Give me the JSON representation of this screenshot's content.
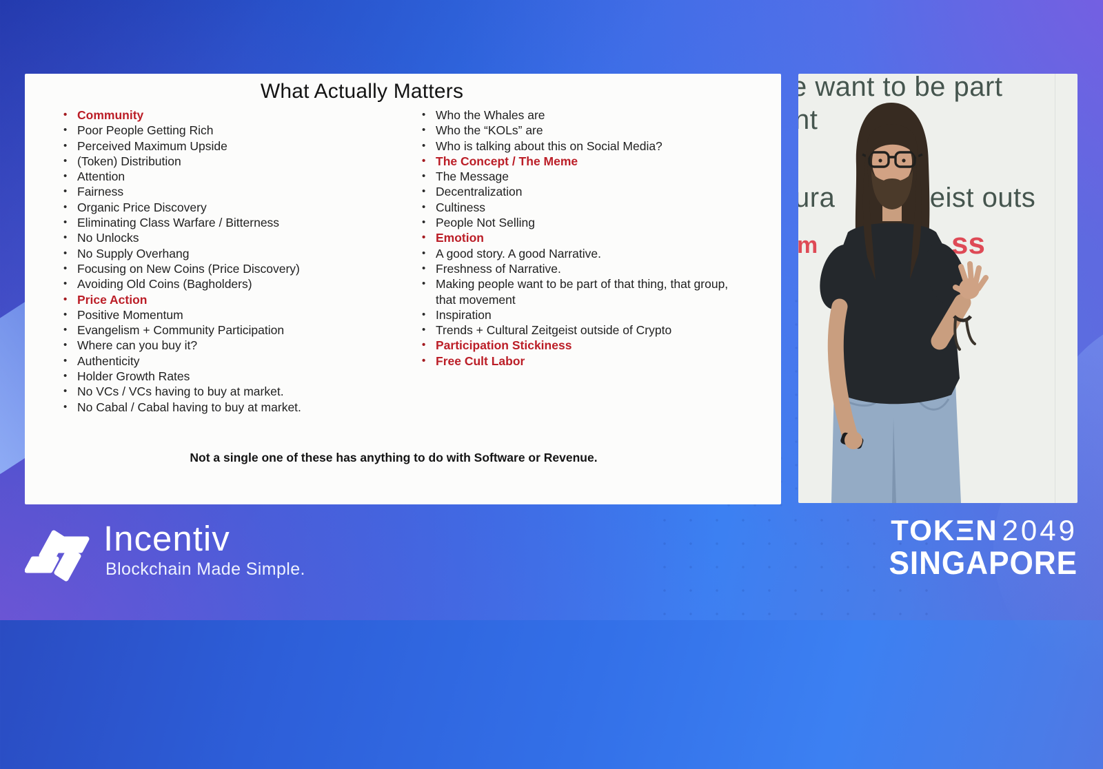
{
  "slide": {
    "title": "What Actually Matters",
    "note": "Not a single one of these has anything to do with Software or Revenue.",
    "left_items": [
      {
        "text": "Community",
        "em": true
      },
      {
        "text": "Poor People Getting Rich"
      },
      {
        "text": "Perceived Maximum Upside"
      },
      {
        "text": "(Token) Distribution"
      },
      {
        "text": "Attention"
      },
      {
        "text": "Fairness"
      },
      {
        "text": "Organic Price Discovery"
      },
      {
        "text": "Eliminating Class Warfare / Bitterness"
      },
      {
        "text": "No Unlocks"
      },
      {
        "text": "No Supply Overhang"
      },
      {
        "text": "Focusing on New Coins (Price Discovery)"
      },
      {
        "text": "Avoiding Old Coins (Bagholders)"
      },
      {
        "text": "Price Action",
        "em": true
      },
      {
        "text": "Positive Momentum"
      },
      {
        "text": "Evangelism + Community Participation"
      },
      {
        "text": "Where can you buy it?"
      },
      {
        "text": "Authenticity"
      },
      {
        "text": "Holder Growth Rates"
      },
      {
        "text": "No VCs / VCs having to buy at market."
      },
      {
        "text": "No Cabal / Cabal having to buy at market."
      }
    ],
    "right_items": [
      {
        "text": "Who the Whales are"
      },
      {
        "text": "Who the “KOLs” are"
      },
      {
        "text": "Who is talking about this on Social Media?"
      },
      {
        "text": "The Concept / The Meme",
        "em": true
      },
      {
        "text": "The Message"
      },
      {
        "text": "Decentralization"
      },
      {
        "text": "Cultiness"
      },
      {
        "text": "People Not Selling"
      },
      {
        "text": "Emotion",
        "em": true
      },
      {
        "text": "A good story. A good Narrative."
      },
      {
        "text": "Freshness of Narrative."
      },
      {
        "text": "Making people want to be part of that thing, that group, that movement"
      },
      {
        "text": "Inspiration"
      },
      {
        "text": "Trends + Cultural Zeitgeist outside of Crypto"
      },
      {
        "text": "Participation Stickiness",
        "em": true
      },
      {
        "text": "Free Cult Labor",
        "em": true
      }
    ]
  },
  "stage_screen": {
    "fragment_line1": "e want to be part",
    "fragment_line2": "nt",
    "fragment_line3a": "ura",
    "fragment_line3b": "itgeist outs",
    "fragment_red_left": "m",
    "fragment_red_right": "ss"
  },
  "footer": {
    "brand": "Incentiv",
    "tagline": "Blockchain Made Simple.",
    "event_name": "TOKΞN",
    "event_year": "2049",
    "event_city": "SINGAPORE"
  },
  "colors": {
    "accent_red": "#bb1e27",
    "slide_background": "#fcfcfb",
    "stage_text": "#45554e",
    "stage_red": "#de4a56",
    "background_blue": "#3370e8",
    "background_purple": "#6e5ad8",
    "light_band": "#9ec0fc"
  }
}
